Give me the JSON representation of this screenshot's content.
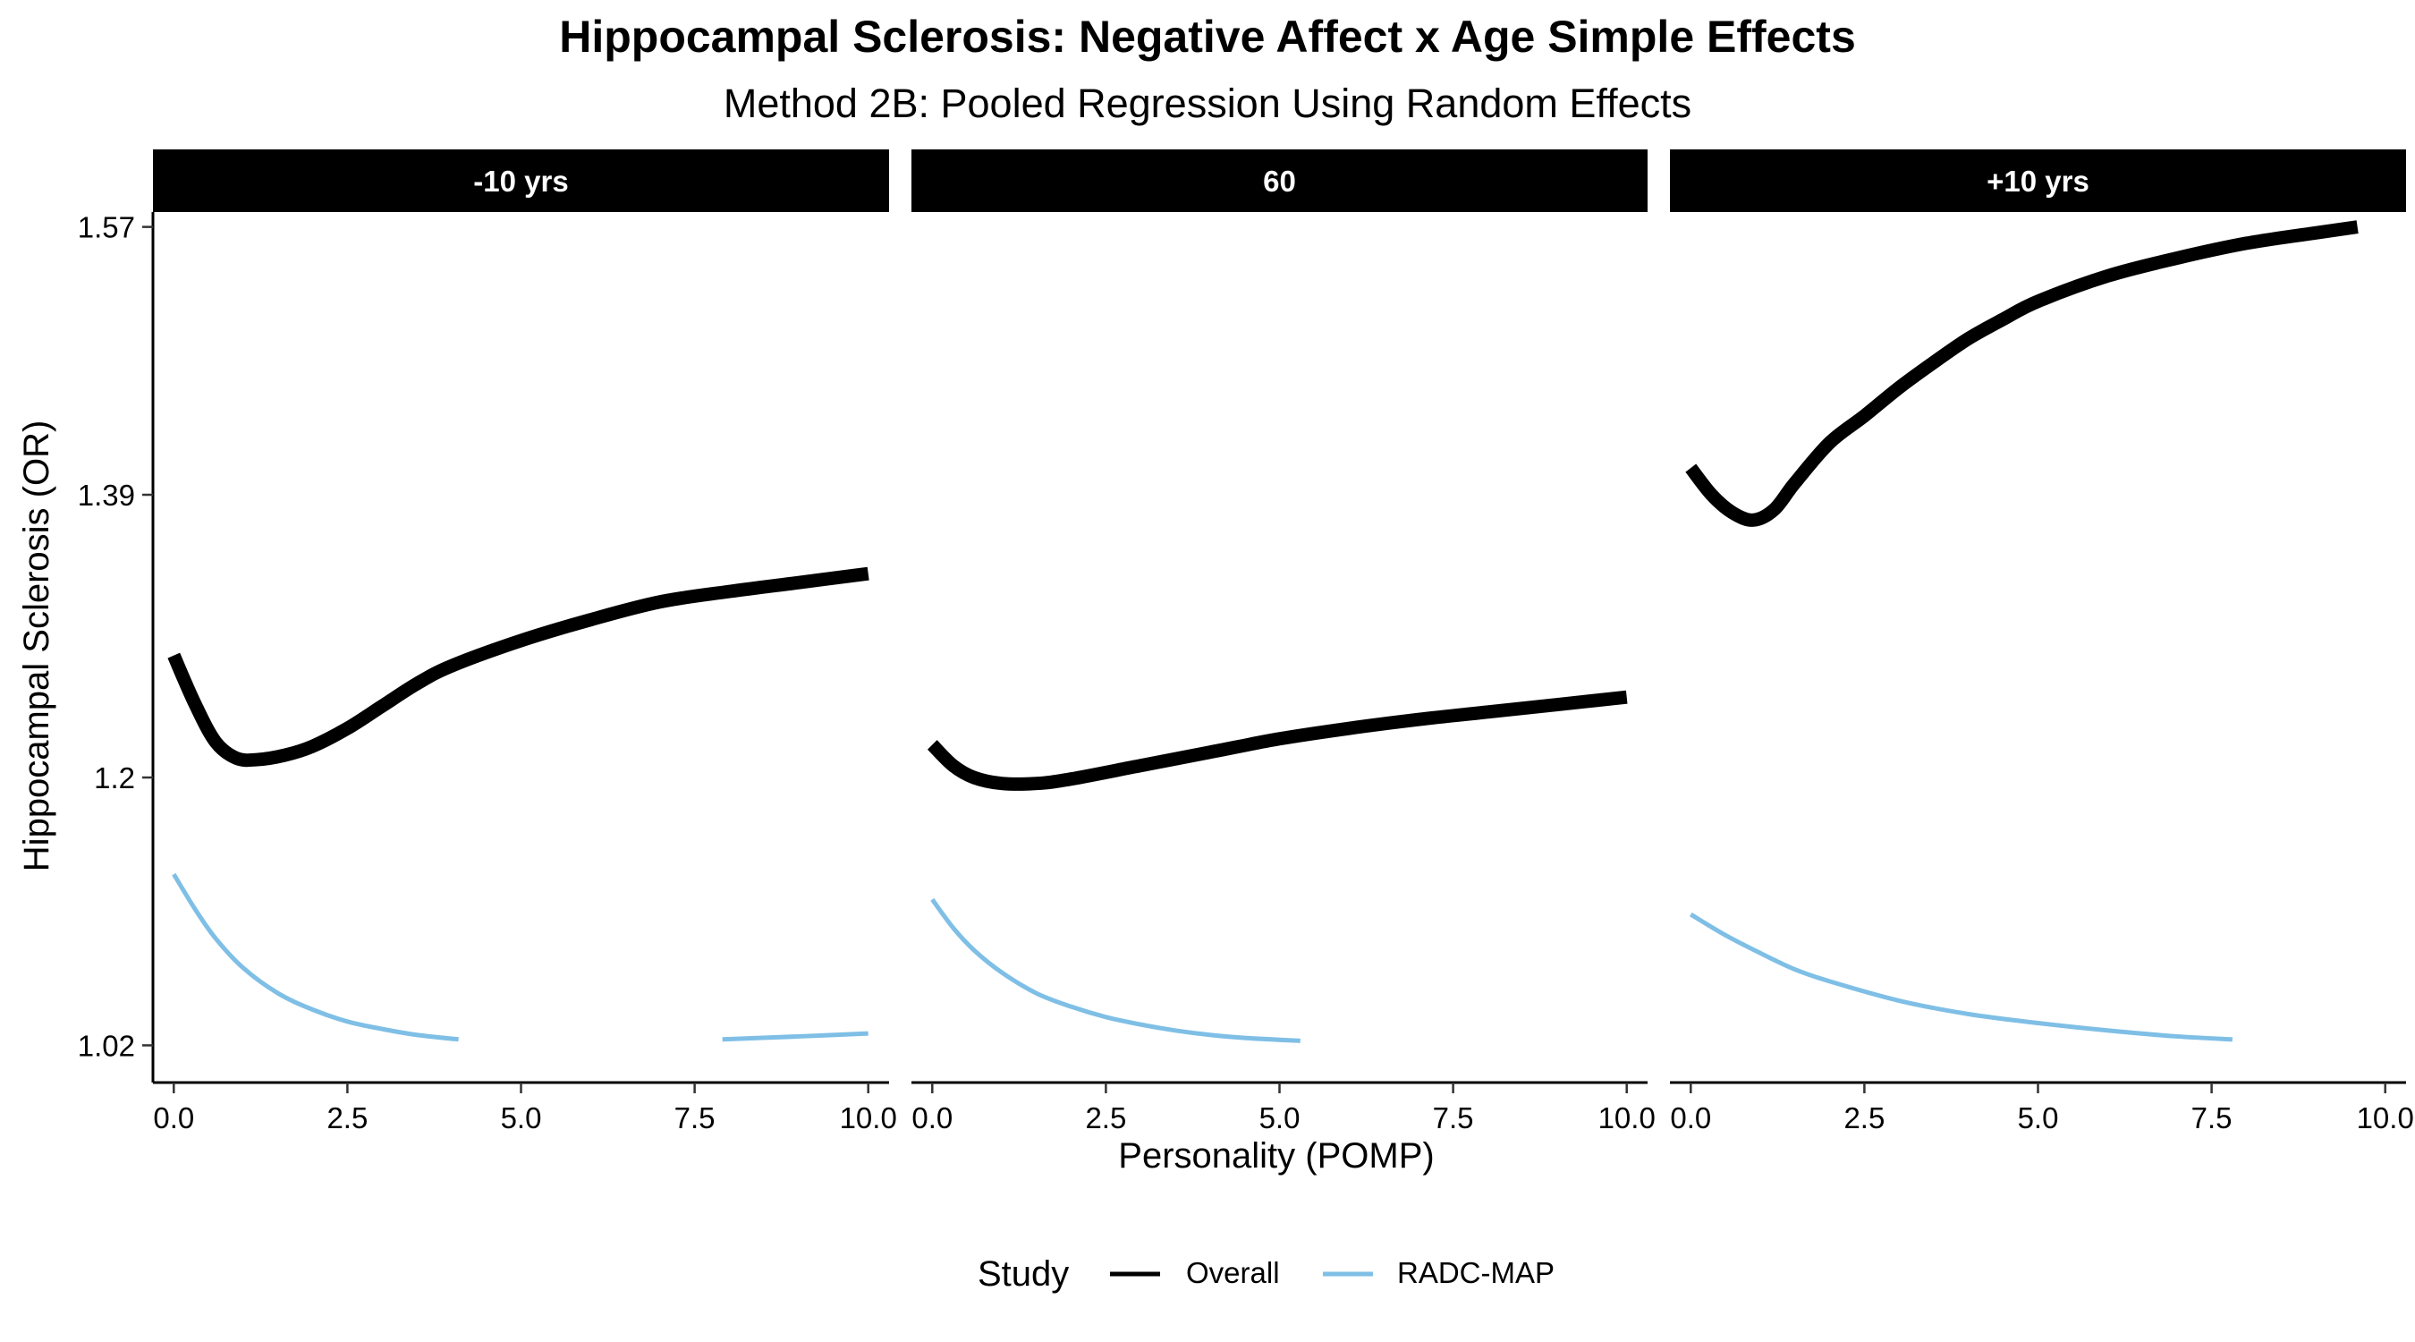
{
  "chart_data": {
    "type": "line",
    "title": "Hippocampal Sclerosis: Negative Affect x Age Simple Effects",
    "subtitle": "Method 2B: Pooled Regression Using Random Effects",
    "xlabel": "Personality (POMP)",
    "ylabel": "Hippocampal Sclerosis (OR)",
    "xlim": [
      -0.3,
      10.3
    ],
    "ylim": [
      0.995,
      1.58
    ],
    "x_ticks": [
      "0.0",
      "2.5",
      "5.0",
      "7.5",
      "10.0"
    ],
    "x_tick_values": [
      0,
      2.5,
      5,
      7.5,
      10
    ],
    "y_ticks": [
      "1.02",
      "1.2",
      "1.39",
      "1.57"
    ],
    "y_tick_values": [
      1.02,
      1.2,
      1.39,
      1.57
    ],
    "grid": false,
    "legend": {
      "title": "Study",
      "position": "bottom",
      "entries": [
        "Overall",
        "RADC-MAP"
      ]
    },
    "colors": {
      "Overall": "#000000",
      "RADC-MAP": "#7fbfe6",
      "strip_bg": "#000000",
      "strip_text": "#ffffff"
    },
    "panels": [
      {
        "label": "-10 yrs",
        "series": [
          {
            "name": "Overall",
            "segments": [
              [
                [
                  0,
                  1.282
                ],
                [
                  0.3,
                  1.25
                ],
                [
                  0.6,
                  1.224
                ],
                [
                  0.9,
                  1.213
                ],
                [
                  1.2,
                  1.212
                ],
                [
                  1.6,
                  1.215
                ],
                [
                  2.0,
                  1.221
                ],
                [
                  2.5,
                  1.233
                ],
                [
                  3.0,
                  1.248
                ],
                [
                  3.5,
                  1.263
                ],
                [
                  4.0,
                  1.275
                ],
                [
                  5.0,
                  1.292
                ],
                [
                  6.0,
                  1.306
                ],
                [
                  7.0,
                  1.318
                ],
                [
                  8.0,
                  1.325
                ],
                [
                  9.0,
                  1.331
                ],
                [
                  10.0,
                  1.337
                ]
              ]
            ]
          },
          {
            "name": "RADC-MAP",
            "segments": [
              [
                [
                  0,
                  1.135
                ],
                [
                  0.3,
                  1.112
                ],
                [
                  0.6,
                  1.092
                ],
                [
                  1.0,
                  1.072
                ],
                [
                  1.5,
                  1.055
                ],
                [
                  2.0,
                  1.044
                ],
                [
                  2.5,
                  1.036
                ],
                [
                  3.0,
                  1.031
                ],
                [
                  3.5,
                  1.027
                ],
                [
                  4.1,
                  1.024
                ]
              ],
              [
                [
                  7.9,
                  1.024
                ],
                [
                  9.0,
                  1.026
                ],
                [
                  10.0,
                  1.028
                ]
              ]
            ]
          }
        ]
      },
      {
        "label": "60",
        "series": [
          {
            "name": "Overall",
            "segments": [
              [
                [
                  0,
                  1.222
                ],
                [
                  0.3,
                  1.208
                ],
                [
                  0.6,
                  1.2
                ],
                [
                  1.0,
                  1.196
                ],
                [
                  1.5,
                  1.196
                ],
                [
                  2.0,
                  1.199
                ],
                [
                  3.0,
                  1.208
                ],
                [
                  4.0,
                  1.217
                ],
                [
                  5.0,
                  1.226
                ],
                [
                  6.0,
                  1.233
                ],
                [
                  7.0,
                  1.239
                ],
                [
                  8.0,
                  1.244
                ],
                [
                  9.0,
                  1.249
                ],
                [
                  10.0,
                  1.254
                ]
              ]
            ]
          },
          {
            "name": "RADC-MAP",
            "segments": [
              [
                [
                  0,
                  1.118
                ],
                [
                  0.3,
                  1.099
                ],
                [
                  0.6,
                  1.084
                ],
                [
                  1.0,
                  1.069
                ],
                [
                  1.5,
                  1.055
                ],
                [
                  2.0,
                  1.046
                ],
                [
                  2.5,
                  1.039
                ],
                [
                  3.0,
                  1.034
                ],
                [
                  3.5,
                  1.03
                ],
                [
                  4.0,
                  1.027
                ],
                [
                  4.5,
                  1.025
                ],
                [
                  5.3,
                  1.023
                ]
              ]
            ]
          }
        ]
      },
      {
        "label": "+10 yrs",
        "series": [
          {
            "name": "Overall",
            "segments": [
              [
                [
                  0,
                  1.408
                ],
                [
                  0.3,
                  1.39
                ],
                [
                  0.6,
                  1.378
                ],
                [
                  0.9,
                  1.373
                ],
                [
                  1.2,
                  1.38
                ],
                [
                  1.5,
                  1.398
                ],
                [
                  2.0,
                  1.425
                ],
                [
                  2.5,
                  1.443
                ],
                [
                  3.0,
                  1.462
                ],
                [
                  3.5,
                  1.479
                ],
                [
                  4.0,
                  1.495
                ],
                [
                  4.5,
                  1.508
                ],
                [
                  5.0,
                  1.52
                ],
                [
                  6.0,
                  1.537
                ],
                [
                  7.0,
                  1.549
                ],
                [
                  8.0,
                  1.559
                ],
                [
                  9.0,
                  1.566
                ],
                [
                  9.6,
                  1.57
                ]
              ]
            ]
          },
          {
            "name": "RADC-MAP",
            "segments": [
              [
                [
                  0,
                  1.108
                ],
                [
                  0.5,
                  1.094
                ],
                [
                  1.0,
                  1.082
                ],
                [
                  1.5,
                  1.071
                ],
                [
                  2.0,
                  1.063
                ],
                [
                  3.0,
                  1.05
                ],
                [
                  4.0,
                  1.041
                ],
                [
                  5.0,
                  1.035
                ],
                [
                  6.0,
                  1.03
                ],
                [
                  7.0,
                  1.026
                ],
                [
                  7.8,
                  1.024
                ]
              ]
            ]
          }
        ]
      }
    ]
  }
}
